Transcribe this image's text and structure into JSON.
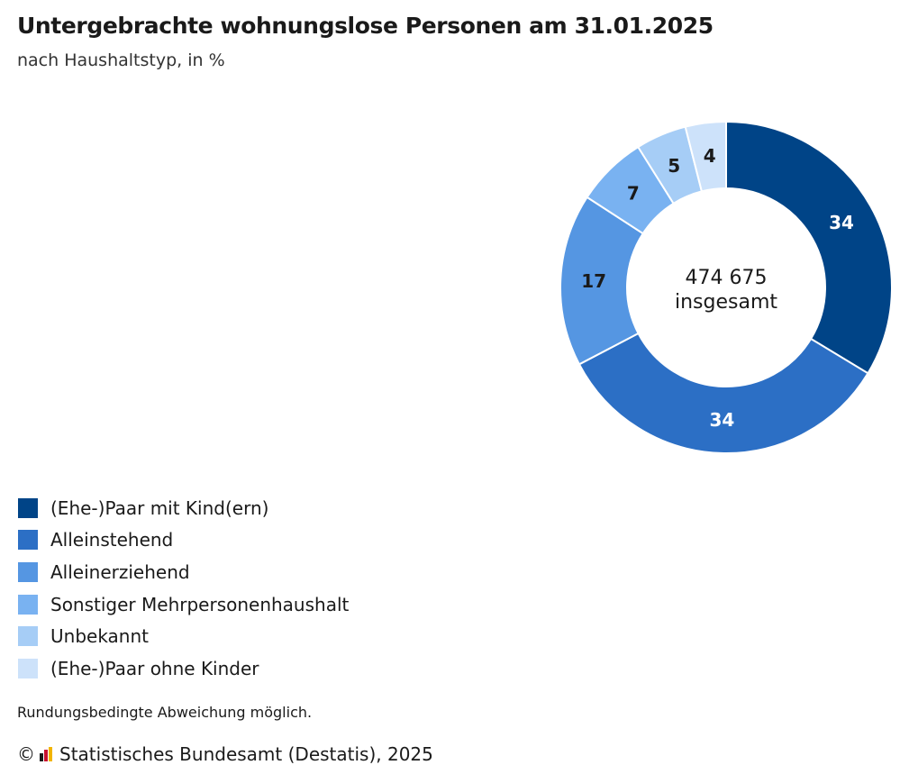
{
  "title": "Untergebrachte wohnungslose Personen am 31.01.2025",
  "subtitle": "nach Haushaltstyp, in %",
  "chart_data": {
    "type": "pie",
    "donut": true,
    "center_value": "474 675",
    "center_label": "insgesamt",
    "categories": [
      "(Ehe-)Paar mit Kind(ern)",
      "Alleinstehend",
      "Alleinerziehend",
      "Sonstiger Mehrpersonenhaushalt",
      "Unbekannt",
      "(Ehe-)Paar ohne Kinder"
    ],
    "values": [
      34,
      34,
      17,
      7,
      5,
      4
    ],
    "colors": [
      "#004487",
      "#2c6fc5",
      "#5596e2",
      "#79b2f1",
      "#a6cdf6",
      "#cde2fa"
    ],
    "label_colors": [
      "#ffffff",
      "#ffffff",
      "#1a1a1a",
      "#1a1a1a",
      "#1a1a1a",
      "#1a1a1a"
    ],
    "legend_position": "bottom-left"
  },
  "note": "Rundungsbedingte Abweichung möglich.",
  "source": {
    "copyright": "©",
    "text": "Statistisches Bundesamt (Destatis), 2025",
    "logo_icon": "destatis-logo-icon"
  }
}
